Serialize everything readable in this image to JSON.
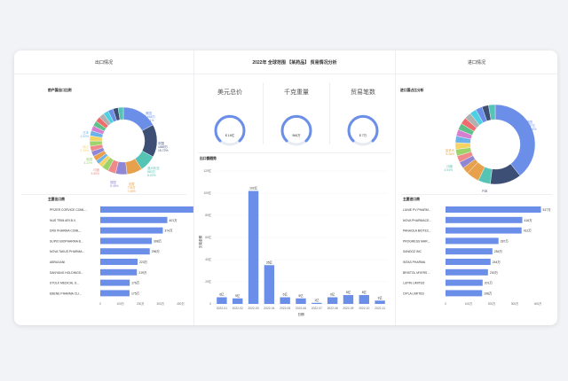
{
  "dashboard_title": "2022年 全球范围 【某药品】 贸易情况分析",
  "left": {
    "header": "出口情况",
    "donut_title": "前产国出口比例",
    "donut_labels": [
      {
        "name": "美国",
        "v": "1668万",
        "p": "17.1%"
      },
      {
        "name": "中国",
        "v": "1665万",
        "p": "15.72%"
      },
      {
        "name": "澳大利亚",
        "v": "880万",
        "p": "8.02%"
      },
      {
        "name": "法国",
        "v": "778万",
        "p": "7.45%"
      },
      {
        "name": "德国",
        "v": "",
        "p": "5.45%"
      },
      {
        "name": "印度",
        "v": "",
        "p": "3.85%"
      },
      {
        "name": "韩国",
        "v": "",
        "p": "3.22%"
      },
      {
        "name": "瑞士",
        "v": "",
        "p": "2.19%"
      },
      {
        "name": "日本",
        "v": "",
        "p": "1.92%"
      }
    ],
    "bar_title": "主要出口商",
    "companies": [
      "PFIZER CORVICE COML...",
      "NUS TRIM ARI B.V.",
      "DRS PHARMA COML...",
      "SUPIO BIOPHARMA B...",
      "NOVA TAKUS PHARMA...",
      "ABRAXANI",
      "SANYANG HOLDINGS...",
      "STOLK MEDICAL S...",
      "EBENE PHARMA CLI..."
    ],
    "axis_ticks": [
      "0",
      "100万",
      "200万",
      "300万",
      "400万",
      "500万"
    ]
  },
  "middle": {
    "kpis": [
      {
        "title": "美元总价",
        "value": "$ 16亿"
      },
      {
        "title": "千克重量",
        "value": "566万"
      },
      {
        "title": "贸易笔数",
        "value": "$ 7万"
      }
    ],
    "bar_title": "出口额趋势",
    "ylabel": "交易金额",
    "xlabel": "日期"
  },
  "right": {
    "header": "进口情况",
    "donut_title": "进口国占比分析",
    "donut_labels": [
      {
        "name": "美国",
        "v": "4.07亿",
        "p": "39.34%"
      },
      {
        "name": "日本",
        "v": "1.6万",
        "p": "12.66%"
      },
      {
        "name": "印度",
        "v": "",
        "p": "4.94%"
      },
      {
        "name": "加拿大",
        "v": "",
        "p": "5.28%"
      }
    ],
    "bar_title": "主要进口商",
    "companies": [
      "LUNIE PV PHARM...",
      "NOVA PHARMACE...",
      "PANACEA BIOTEC...",
      "PROGRESS MAR...",
      "SANDOZ INC",
      "INTAS PHARMA",
      "BRISTOL MYERS ...",
      "LUPIN LIMITED",
      "CIPLA LIMITED"
    ],
    "axis_ticks": [
      "0",
      "100万",
      "200万",
      "300万",
      "400万"
    ]
  },
  "chart_data": [
    {
      "type": "bar",
      "title": "出口额趋势",
      "xlabel": "日期",
      "ylabel": "交易金额",
      "categories": [
        "2022-01",
        "2022-02",
        "2022-03",
        "2022-04",
        "2022-05",
        "2022-06",
        "2022-07",
        "2022-08",
        "2022-09",
        "2022-10",
        "2022-11"
      ],
      "values": [
        6,
        5,
        102,
        35,
        6,
        5,
        1,
        6,
        8,
        8,
        3
      ],
      "value_labels": [
        "6亿",
        "5亿",
        "102亿",
        "35亿",
        "6亿",
        "5亿",
        "1亿",
        "6亿",
        "8亿",
        "8亿",
        "3亿"
      ],
      "yticks": [
        "0",
        "20亿",
        "40亿",
        "60亿",
        "80亿",
        "100亿",
        "120亿"
      ],
      "ylim": [
        0,
        120
      ]
    },
    {
      "type": "bar",
      "title": "主要出口商",
      "categories": [
        "PFIZER CORVICE COML...",
        "NUS TRIM ARI B.V.",
        "DRS PHARMA COML...",
        "SUPIO BIOPHARMA B...",
        "NOVA TAKUS PHARMA...",
        "ABRAXANI",
        "SANYANG HOLDINGS...",
        "STOLK MEDICAL S...",
        "EBENE PHARMA CLI..."
      ],
      "values": [
        557,
        401,
        374,
        308,
        296,
        223,
        219,
        176,
        175
      ],
      "value_labels": [
        "557万",
        "401万",
        "374万",
        "308万",
        "296万",
        "223万",
        "219万",
        "176万",
        "175万"
      ],
      "xlim": [
        0,
        600
      ]
    },
    {
      "type": "bar",
      "title": "主要进口商",
      "categories": [
        "LUNIE PV PHARM...",
        "NOVA PHARMACE...",
        "PANACEA BIOTEC...",
        "PROGRESS MAR...",
        "SANDOZ INC",
        "INTAS PHARMA",
        "BRISTOL MYERS ...",
        "LUPIN LIMITED",
        "CIPLA LIMITED"
      ],
      "values": [
        517,
        416,
        412,
        287,
        254,
        244,
        230,
        201,
        198
      ],
      "value_labels": [
        "517万",
        "416万",
        "412万",
        "287万",
        "254万",
        "244万",
        "230万",
        "201万",
        "198万"
      ],
      "xlim": [
        0,
        500
      ]
    },
    {
      "type": "pie",
      "title": "前产国出口比例",
      "categories": [
        "美国",
        "中国",
        "澳大利亚",
        "法国",
        "德国",
        "印度",
        "韩国",
        "瑞士",
        "日本",
        "其他"
      ],
      "values": [
        17.1,
        15.72,
        8.02,
        7.45,
        5.45,
        3.85,
        3.22,
        2.19,
        1.92,
        35.08
      ]
    },
    {
      "type": "pie",
      "title": "进口国占比分析",
      "categories": [
        "美国",
        "日本",
        "印度",
        "加拿大",
        "其他"
      ],
      "values": [
        39.34,
        12.66,
        4.94,
        5.28,
        37.78
      ]
    }
  ],
  "colors": {
    "accent": "#6b8fe8",
    "donut": [
      "#6b8fe8",
      "#3d4f75",
      "#55c4b5",
      "#e7a04c",
      "#8f86d6",
      "#f08a8a",
      "#9cd36b",
      "#f6d365",
      "#6bb3e8",
      "#d77fd1",
      "#5fc18a",
      "#ef6c6c",
      "#b0b0b0",
      "#4dd0e1"
    ]
  }
}
